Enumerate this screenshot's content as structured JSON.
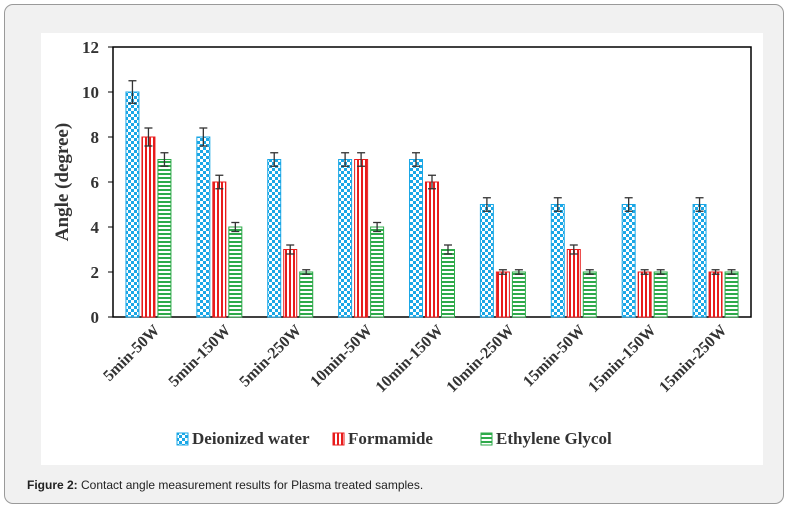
{
  "chart_data": {
    "type": "bar",
    "ylabel": "Angle (degree)",
    "xlabel": "",
    "ylim": [
      0,
      12
    ],
    "yticks": [
      0,
      2,
      4,
      6,
      8,
      10,
      12
    ],
    "categories": [
      "5min-50W",
      "5min-150W",
      "5min-250W",
      "10min-50W",
      "10min-150W",
      "10min-250W",
      "15min-50W",
      "15min-150W",
      "15min-250W"
    ],
    "series": [
      {
        "name": "Deionized water",
        "values": [
          10,
          8,
          7,
          7,
          7,
          5,
          5,
          5,
          5
        ],
        "errors": [
          0.5,
          0.4,
          0.3,
          0.3,
          0.3,
          0.3,
          0.3,
          0.3,
          0.3
        ],
        "color": "#1aa7e6",
        "pattern": "checker"
      },
      {
        "name": "Formamide",
        "values": [
          8,
          6,
          3,
          7,
          6,
          2,
          3,
          2,
          2
        ],
        "errors": [
          0.4,
          0.3,
          0.2,
          0.3,
          0.3,
          0.1,
          0.2,
          0.1,
          0.1
        ],
        "color": "#e81c1c",
        "pattern": "vertical-stripes"
      },
      {
        "name": "Ethylene Glycol",
        "values": [
          7,
          4,
          2,
          4,
          3,
          2,
          2,
          2,
          2
        ],
        "errors": [
          0.3,
          0.2,
          0.1,
          0.2,
          0.2,
          0.1,
          0.1,
          0.1,
          0.1
        ],
        "color": "#2eaa4a",
        "pattern": "horizontal-stripes"
      }
    ],
    "legend_position": "bottom",
    "grid": false
  },
  "caption": {
    "label": "Figure 2:",
    "text": " Contact angle measurement results for Plasma treated samples."
  }
}
